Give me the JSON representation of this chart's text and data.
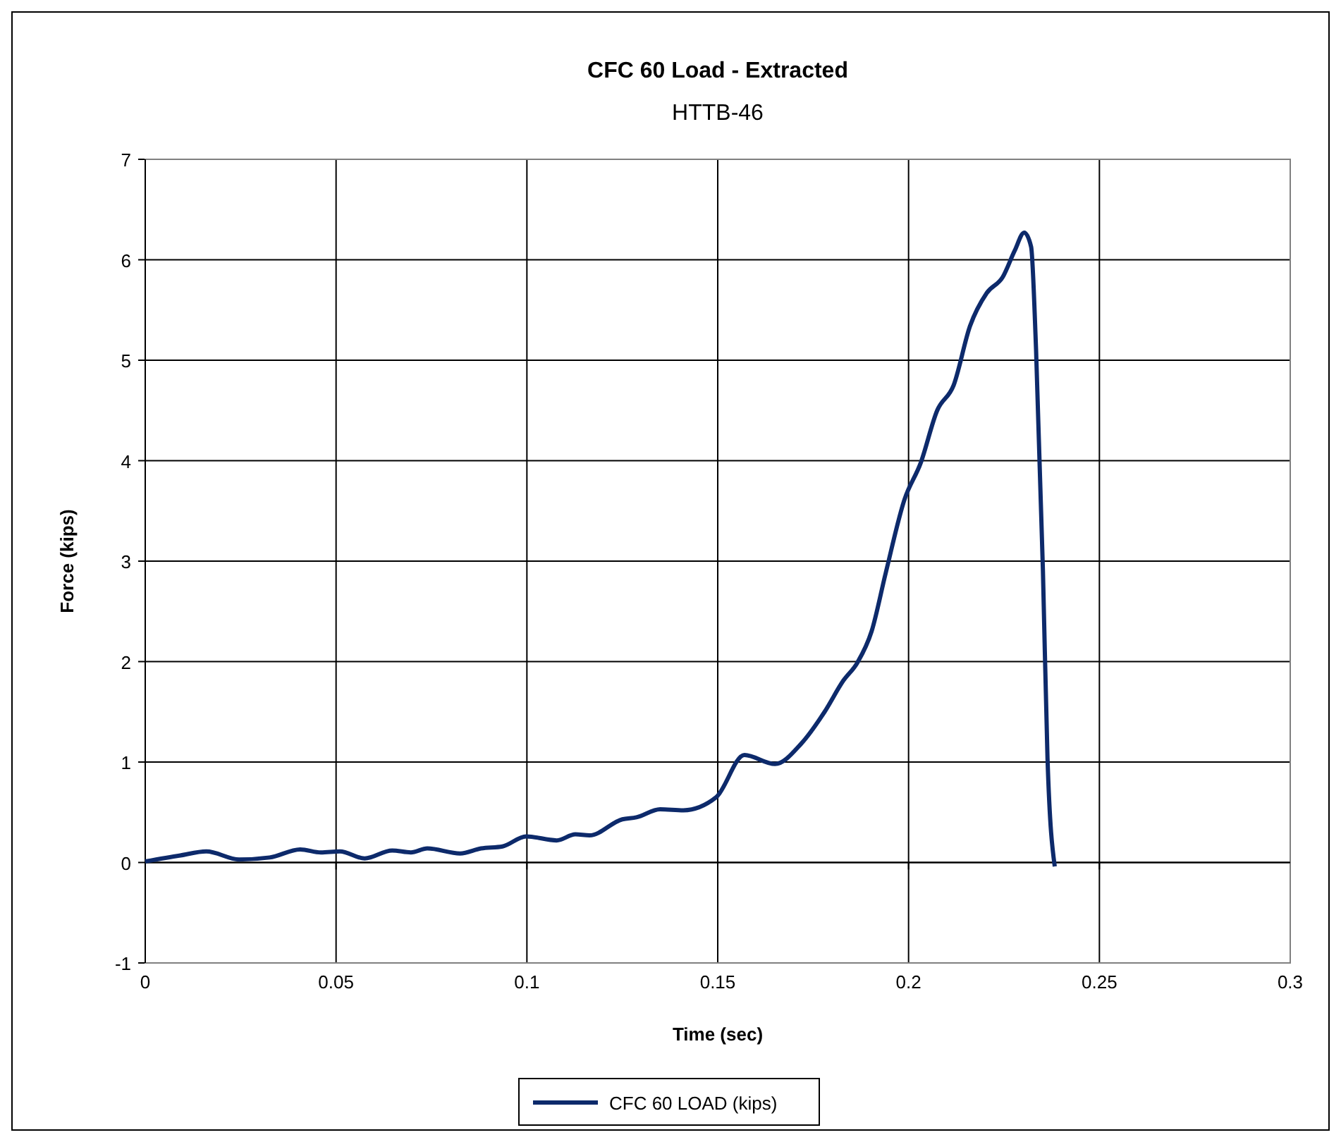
{
  "chart_data": {
    "type": "line",
    "title": "CFC 60 Load - Extracted",
    "subtitle": "HTTB-46",
    "xlabel": "Time (sec)",
    "ylabel": "Force (kips)",
    "xlim": [
      0,
      0.3
    ],
    "xticks": [
      0,
      0.05,
      0.1,
      0.15,
      0.2,
      0.25,
      0.3
    ],
    "ylim": [
      -1,
      7
    ],
    "yticks": [
      -1,
      0,
      1,
      2,
      3,
      4,
      5,
      6,
      7
    ],
    "grid": true,
    "legend": "bottom",
    "marker": "none",
    "line_style": "solid",
    "series": [
      {
        "name": "CFC 60 LOAD (kips)",
        "color": "#0d2a6b",
        "x": [
          0,
          0.0092,
          0.016,
          0.0246,
          0.0326,
          0.0406,
          0.046,
          0.051,
          0.0575,
          0.0647,
          0.0696,
          0.0739,
          0.0825,
          0.088,
          0.0936,
          0.0998,
          0.1078,
          0.1127,
          0.1164,
          0.125,
          0.1287,
          0.1349,
          0.141,
          0.1496,
          0.157,
          0.165,
          0.1718,
          0.178,
          0.1829,
          0.1866,
          0.1903,
          0.194,
          0.1989,
          0.2032,
          0.2075,
          0.2118,
          0.2161,
          0.2205,
          0.2247,
          0.2278,
          0.2303,
          0.2321,
          0.2334,
          0.2352,
          0.2364,
          0.2383
        ],
        "values": [
          0.01,
          0.07,
          0.11,
          0.03,
          0.05,
          0.13,
          0.1,
          0.11,
          0.04,
          0.12,
          0.1,
          0.14,
          0.09,
          0.14,
          0.16,
          0.26,
          0.22,
          0.28,
          0.27,
          0.43,
          0.45,
          0.53,
          0.52,
          0.65,
          1.07,
          0.98,
          1.18,
          1.5,
          1.81,
          1.99,
          2.3,
          2.88,
          3.61,
          3.98,
          4.5,
          4.75,
          5.34,
          5.67,
          5.83,
          6.09,
          6.27,
          6.13,
          5.11,
          2.91,
          1.04,
          -0.04
        ]
      }
    ]
  }
}
